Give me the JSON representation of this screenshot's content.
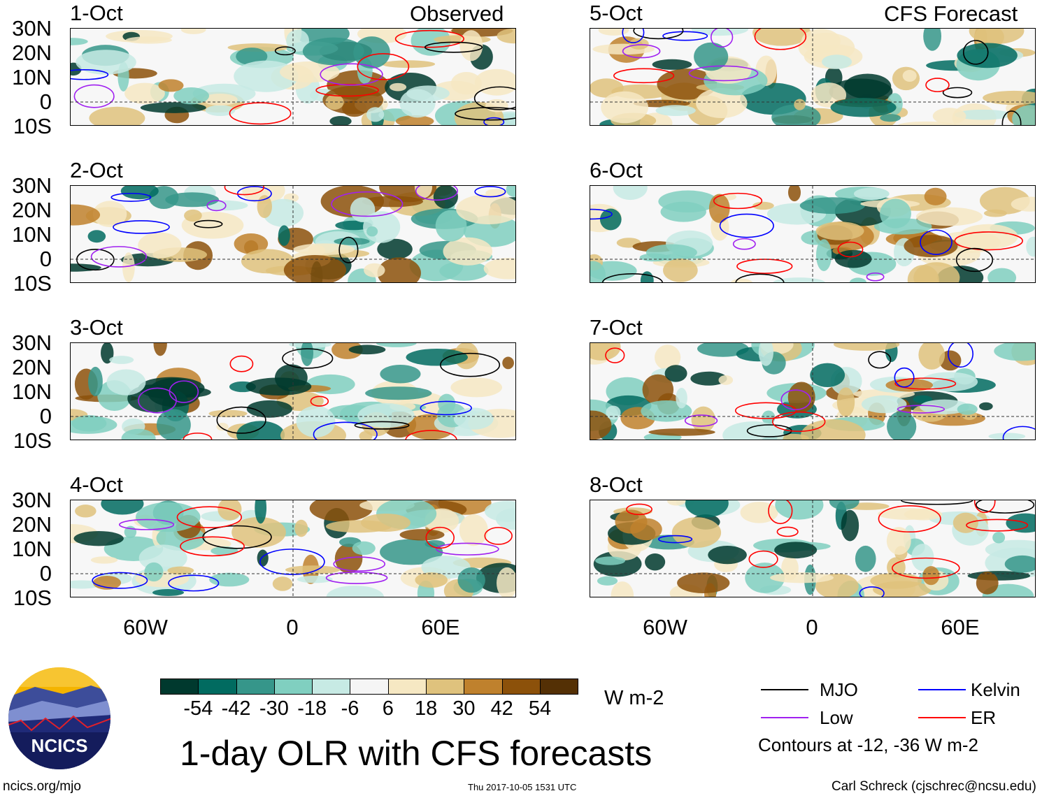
{
  "headers": {
    "left": "Observed",
    "right": "CFS Forecast"
  },
  "panels": [
    {
      "date": "1-Oct",
      "column": "observed"
    },
    {
      "date": "2-Oct",
      "column": "observed"
    },
    {
      "date": "3-Oct",
      "column": "observed"
    },
    {
      "date": "4-Oct",
      "column": "observed"
    },
    {
      "date": "5-Oct",
      "column": "forecast"
    },
    {
      "date": "6-Oct",
      "column": "forecast"
    },
    {
      "date": "7-Oct",
      "column": "forecast"
    },
    {
      "date": "8-Oct",
      "column": "forecast"
    }
  ],
  "lat_ticks": [
    "30N",
    "20N",
    "10N",
    "0",
    "10S"
  ],
  "lon_ticks": [
    "60W",
    "0",
    "60E"
  ],
  "colorbar": {
    "colors": [
      "#00392e",
      "#016b60",
      "#36968a",
      "#80cfc0",
      "#c7eae4",
      "#f5f5f5",
      "#f6e8c3",
      "#dfc27d",
      "#bf812d",
      "#8c510a",
      "#543005"
    ],
    "labels": [
      "-54",
      "-42",
      "-30",
      "-18",
      "-6",
      "6",
      "18",
      "30",
      "42",
      "54"
    ],
    "units": "W m-2"
  },
  "legend": {
    "items": [
      {
        "label": "MJO",
        "color": "#000000"
      },
      {
        "label": "Kelvin",
        "color": "#0000ff"
      },
      {
        "label": "Low",
        "color": "#a020f0"
      },
      {
        "label": "ER",
        "color": "#ff0000"
      }
    ],
    "note": "Contours at -12, -36 W m-2"
  },
  "title": "1-day OLR with CFS forecasts",
  "logo_text": "NCICS",
  "footer": {
    "url": "ncics.org/mjo",
    "timestamp": "Thu 2017-10-05 1531 UTC",
    "credit": "Carl Schreck (cjschrec@ncsu.edu)"
  }
}
